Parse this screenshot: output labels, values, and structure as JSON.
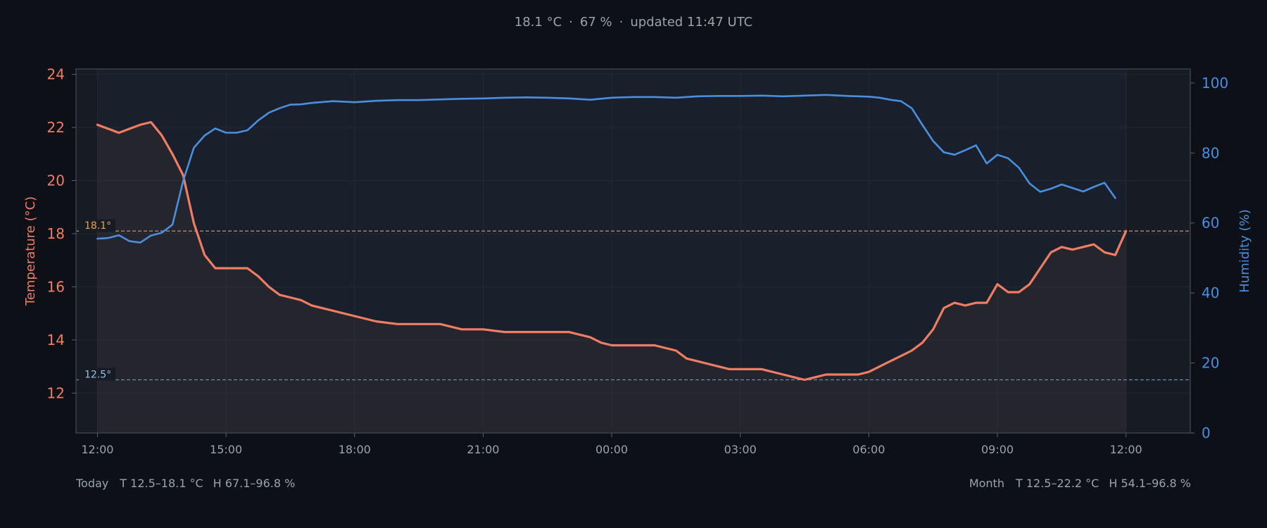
{
  "status": {
    "temperature": "18.1 °C",
    "humidity": "67 %",
    "updated": "updated 11:47 UTC",
    "separator": "·"
  },
  "footer": {
    "left": {
      "label": "Today",
      "temp": "T 12.5–18.1 °C",
      "hum": "H 67.1–96.8 %"
    },
    "right": {
      "label": "Month",
      "temp": "T 12.5–22.2 °C",
      "hum": "H 54.1–96.8 %"
    }
  },
  "colors": {
    "temperature": "#ef7d63",
    "humidity": "#4a8fdf",
    "hi_line": "#b98567",
    "lo_line": "#6c8bab",
    "hi_label": "#e9a24a",
    "lo_label": "#8ec0ef"
  },
  "chart_data": {
    "type": "line",
    "x_unit": "hours since 12:00 (today)",
    "x_range": [
      -0.5,
      25.5
    ],
    "x_ticks": [
      {
        "t": 0,
        "label": "12:00"
      },
      {
        "t": 3,
        "label": "15:00"
      },
      {
        "t": 6,
        "label": "18:00"
      },
      {
        "t": 9,
        "label": "21:00"
      },
      {
        "t": 12,
        "label": "00:00"
      },
      {
        "t": 15,
        "label": "03:00"
      },
      {
        "t": 18,
        "label": "06:00"
      },
      {
        "t": 21,
        "label": "09:00"
      },
      {
        "t": 24,
        "label": "12:00"
      }
    ],
    "y_left": {
      "label": "Temperature (°C)",
      "range": [
        10.5,
        24.2
      ],
      "ticks": [
        12,
        14,
        16,
        18,
        20,
        22,
        24
      ]
    },
    "y_right": {
      "label": "Humidity (%)",
      "range": [
        0,
        104
      ],
      "ticks": [
        0,
        20,
        40,
        60,
        80,
        100
      ]
    },
    "grid": true,
    "reference_lines": [
      {
        "axis": "left",
        "value": 18.1,
        "label": "18.1°"
      },
      {
        "axis": "left",
        "value": 12.5,
        "label": "12.5°"
      }
    ],
    "series": [
      {
        "name": "Temperature",
        "axis": "left",
        "points": [
          [
            0,
            22.1
          ],
          [
            0.25,
            21.95
          ],
          [
            0.5,
            21.8
          ],
          [
            0.75,
            21.95
          ],
          [
            1.0,
            22.1
          ],
          [
            1.25,
            22.2
          ],
          [
            1.5,
            21.7
          ],
          [
            1.75,
            21.0
          ],
          [
            2.0,
            20.2
          ],
          [
            2.25,
            18.4
          ],
          [
            2.5,
            17.2
          ],
          [
            2.75,
            16.7
          ],
          [
            3.0,
            16.7
          ],
          [
            3.25,
            16.7
          ],
          [
            3.5,
            16.7
          ],
          [
            3.75,
            16.4
          ],
          [
            4.0,
            16.0
          ],
          [
            4.25,
            15.7
          ],
          [
            4.5,
            15.6
          ],
          [
            4.75,
            15.5
          ],
          [
            5.0,
            15.3
          ],
          [
            5.5,
            15.1
          ],
          [
            6.0,
            14.9
          ],
          [
            6.5,
            14.7
          ],
          [
            7.0,
            14.6
          ],
          [
            7.5,
            14.6
          ],
          [
            8.0,
            14.6
          ],
          [
            8.5,
            14.4
          ],
          [
            9.0,
            14.4
          ],
          [
            9.5,
            14.3
          ],
          [
            10.0,
            14.3
          ],
          [
            10.5,
            14.3
          ],
          [
            11.0,
            14.3
          ],
          [
            11.5,
            14.1
          ],
          [
            11.75,
            13.9
          ],
          [
            12.0,
            13.8
          ],
          [
            12.5,
            13.8
          ],
          [
            13.0,
            13.8
          ],
          [
            13.5,
            13.6
          ],
          [
            13.75,
            13.3
          ],
          [
            14.0,
            13.2
          ],
          [
            14.5,
            13.0
          ],
          [
            14.75,
            12.9
          ],
          [
            15.0,
            12.9
          ],
          [
            15.5,
            12.9
          ],
          [
            16.0,
            12.7
          ],
          [
            16.25,
            12.6
          ],
          [
            16.5,
            12.5
          ],
          [
            16.75,
            12.6
          ],
          [
            17.0,
            12.7
          ],
          [
            17.5,
            12.7
          ],
          [
            17.75,
            12.7
          ],
          [
            18.0,
            12.8
          ],
          [
            18.5,
            13.2
          ],
          [
            19.0,
            13.6
          ],
          [
            19.25,
            13.9
          ],
          [
            19.5,
            14.4
          ],
          [
            19.75,
            15.2
          ],
          [
            20.0,
            15.4
          ],
          [
            20.25,
            15.3
          ],
          [
            20.5,
            15.4
          ],
          [
            20.75,
            15.4
          ],
          [
            21.0,
            16.1
          ],
          [
            21.25,
            15.8
          ],
          [
            21.5,
            15.8
          ],
          [
            21.75,
            16.1
          ],
          [
            22.0,
            16.7
          ],
          [
            22.25,
            17.3
          ],
          [
            22.5,
            17.5
          ],
          [
            22.75,
            17.4
          ],
          [
            23.0,
            17.5
          ],
          [
            23.25,
            17.6
          ],
          [
            23.5,
            17.3
          ],
          [
            23.75,
            17.2
          ],
          [
            24.0,
            18.1
          ]
        ]
      },
      {
        "name": "Humidity",
        "axis": "right",
        "points": [
          [
            0,
            55.5
          ],
          [
            0.25,
            55.7
          ],
          [
            0.5,
            56.5
          ],
          [
            0.75,
            54.8
          ],
          [
            1.0,
            54.4
          ],
          [
            1.25,
            56.4
          ],
          [
            1.5,
            57.2
          ],
          [
            1.75,
            59.5
          ],
          [
            2.0,
            72.0
          ],
          [
            2.25,
            81.5
          ],
          [
            2.5,
            85.0
          ],
          [
            2.75,
            87.0
          ],
          [
            3.0,
            85.8
          ],
          [
            3.25,
            85.8
          ],
          [
            3.5,
            86.5
          ],
          [
            3.75,
            89.3
          ],
          [
            4.0,
            91.5
          ],
          [
            4.25,
            92.8
          ],
          [
            4.5,
            93.8
          ],
          [
            4.75,
            93.9
          ],
          [
            5.0,
            94.3
          ],
          [
            5.5,
            94.8
          ],
          [
            6.0,
            94.5
          ],
          [
            6.5,
            94.9
          ],
          [
            7.0,
            95.1
          ],
          [
            7.5,
            95.1
          ],
          [
            8.0,
            95.3
          ],
          [
            8.5,
            95.5
          ],
          [
            9.0,
            95.6
          ],
          [
            9.5,
            95.8
          ],
          [
            10.0,
            95.9
          ],
          [
            10.5,
            95.8
          ],
          [
            11.0,
            95.6
          ],
          [
            11.5,
            95.2
          ],
          [
            12.0,
            95.8
          ],
          [
            12.5,
            96.0
          ],
          [
            13.0,
            96.0
          ],
          [
            13.5,
            95.8
          ],
          [
            14.0,
            96.2
          ],
          [
            14.5,
            96.3
          ],
          [
            15.0,
            96.3
          ],
          [
            15.5,
            96.4
          ],
          [
            16.0,
            96.2
          ],
          [
            16.5,
            96.4
          ],
          [
            17.0,
            96.6
          ],
          [
            17.5,
            96.3
          ],
          [
            18.0,
            96.1
          ],
          [
            18.25,
            95.8
          ],
          [
            18.5,
            95.2
          ],
          [
            18.75,
            94.8
          ],
          [
            19.0,
            92.8
          ],
          [
            19.25,
            88.0
          ],
          [
            19.5,
            83.4
          ],
          [
            19.75,
            80.2
          ],
          [
            20.0,
            79.5
          ],
          [
            20.25,
            80.8
          ],
          [
            20.5,
            82.2
          ],
          [
            20.75,
            77.0
          ],
          [
            21.0,
            79.5
          ],
          [
            21.25,
            78.5
          ],
          [
            21.5,
            75.8
          ],
          [
            21.75,
            71.3
          ],
          [
            22.0,
            68.9
          ],
          [
            22.25,
            69.8
          ],
          [
            22.5,
            71.0
          ],
          [
            22.75,
            70.0
          ],
          [
            23.0,
            69.0
          ],
          [
            23.25,
            70.3
          ],
          [
            23.5,
            71.5
          ],
          [
            23.75,
            67.1
          ]
        ]
      }
    ]
  }
}
